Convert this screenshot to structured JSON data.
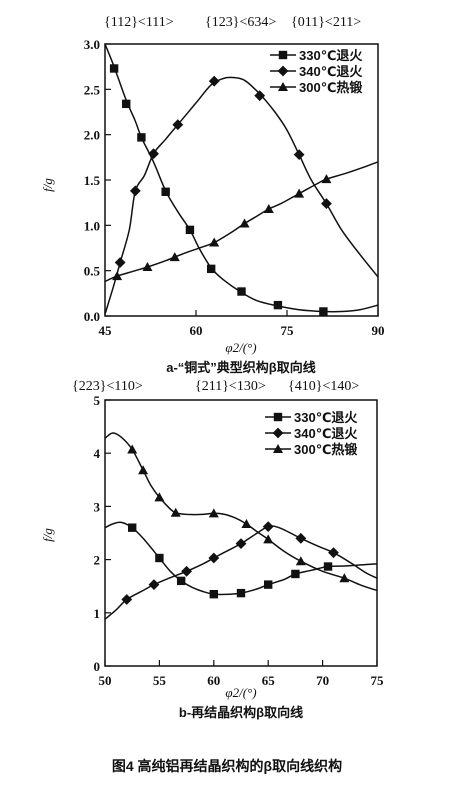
{
  "figure_caption": "图4   高纯铝再结晶织构的β取向线织构",
  "chart_data": [
    {
      "type": "line",
      "subtitle": "a-“铜式”典型织构β取向线",
      "xlabel": "φ2/(°)",
      "ylabel": "f/g",
      "top_annotations": [
        "{112}<111>",
        "{123}<634>",
        "{011}<211>"
      ],
      "xlim": [
        45,
        90
      ],
      "ylim": [
        0,
        3.0
      ],
      "x_ticks": [
        "45",
        "60",
        "75",
        "90"
      ],
      "y_ticks": [
        "0.0",
        "0.5",
        "1.0",
        "1.5",
        "2.0",
        "2.5",
        "3.0"
      ],
      "legend_position": "top-right",
      "series": [
        {
          "name": "330℃退火",
          "marker": "square",
          "points": [
            [
              46.5,
              2.73
            ],
            [
              48.5,
              2.34
            ],
            [
              51,
              1.97
            ],
            [
              55,
              1.37
            ],
            [
              59,
              0.95
            ],
            [
              62.5,
              0.52
            ],
            [
              67.5,
              0.27
            ],
            [
              73.5,
              0.12
            ],
            [
              81,
              0.05
            ]
          ],
          "curve": [
            [
              45,
              3.0
            ],
            [
              46.5,
              2.75
            ],
            [
              48.5,
              2.38
            ],
            [
              50,
              2.15
            ],
            [
              51,
              1.97
            ],
            [
              53,
              1.7
            ],
            [
              55,
              1.38
            ],
            [
              57,
              1.15
            ],
            [
              59,
              0.95
            ],
            [
              60.5,
              0.75
            ],
            [
              62.5,
              0.53
            ],
            [
              64.5,
              0.4
            ],
            [
              67.5,
              0.26
            ],
            [
              70,
              0.17
            ],
            [
              73.5,
              0.11
            ],
            [
              77,
              0.07
            ],
            [
              81,
              0.05
            ],
            [
              84,
              0.05
            ],
            [
              87,
              0.07
            ],
            [
              90,
              0.12
            ]
          ]
        },
        {
          "name": "340℃退火",
          "marker": "diamond",
          "points": [
            [
              47.5,
              0.59
            ],
            [
              50,
              1.38
            ],
            [
              53,
              1.79
            ],
            [
              57,
              2.11
            ],
            [
              63,
              2.59
            ],
            [
              70.5,
              2.43
            ],
            [
              77,
              1.78
            ],
            [
              81.5,
              1.24
            ]
          ],
          "curve": [
            [
              45,
              0.02
            ],
            [
              46.5,
              0.35
            ],
            [
              47.5,
              0.59
            ],
            [
              49,
              0.95
            ],
            [
              50,
              1.38
            ],
            [
              51.5,
              1.55
            ],
            [
              53,
              1.79
            ],
            [
              55,
              1.95
            ],
            [
              57,
              2.11
            ],
            [
              60,
              2.35
            ],
            [
              62.5,
              2.55
            ],
            [
              64.5,
              2.62
            ],
            [
              66,
              2.63
            ],
            [
              68,
              2.6
            ],
            [
              70.5,
              2.45
            ],
            [
              73,
              2.25
            ],
            [
              75,
              2.05
            ],
            [
              77,
              1.78
            ],
            [
              79,
              1.5
            ],
            [
              81.5,
              1.24
            ],
            [
              84,
              0.95
            ],
            [
              87,
              0.68
            ],
            [
              90,
              0.43
            ]
          ]
        },
        {
          "name": "300℃热锻",
          "marker": "triangle",
          "points": [
            [
              47,
              0.44
            ],
            [
              52,
              0.54
            ],
            [
              56.5,
              0.65
            ],
            [
              63,
              0.81
            ],
            [
              68,
              1.02
            ],
            [
              72,
              1.18
            ],
            [
              77,
              1.35
            ],
            [
              81.5,
              1.51
            ]
          ],
          "curve": [
            [
              45,
              0.38
            ],
            [
              47,
              0.44
            ],
            [
              50,
              0.5
            ],
            [
              52,
              0.54
            ],
            [
              55,
              0.61
            ],
            [
              58,
              0.69
            ],
            [
              61,
              0.76
            ],
            [
              63,
              0.81
            ],
            [
              66,
              0.93
            ],
            [
              68,
              1.02
            ],
            [
              70,
              1.1
            ],
            [
              72,
              1.18
            ],
            [
              74,
              1.24
            ],
            [
              77,
              1.35
            ],
            [
              80,
              1.46
            ],
            [
              81.5,
              1.51
            ],
            [
              85,
              1.58
            ],
            [
              88,
              1.65
            ],
            [
              90,
              1.7
            ]
          ]
        }
      ]
    },
    {
      "type": "line",
      "subtitle": "b-再结晶织构β取向线",
      "xlabel": "φ2/(°)",
      "ylabel": "f/g",
      "top_annotations": [
        "{223}<110>",
        "{211}<130>",
        "{410}<140>"
      ],
      "xlim": [
        50,
        75
      ],
      "ylim": [
        0,
        5
      ],
      "x_ticks": [
        "50",
        "55",
        "60",
        "65",
        "70",
        "75"
      ],
      "y_ticks": [
        "0",
        "1",
        "2",
        "3",
        "4",
        "5"
      ],
      "legend_position": "top-right",
      "series": [
        {
          "name": "330℃退火",
          "marker": "square",
          "points": [
            [
              52.5,
              2.6
            ],
            [
              55,
              2.03
            ],
            [
              57,
              1.6
            ],
            [
              60,
              1.35
            ],
            [
              62.5,
              1.37
            ],
            [
              65,
              1.53
            ],
            [
              67.5,
              1.73
            ],
            [
              70.5,
              1.87
            ]
          ],
          "curve": [
            [
              50,
              2.6
            ],
            [
              50.7,
              2.67
            ],
            [
              51.5,
              2.7
            ],
            [
              52.5,
              2.6
            ],
            [
              53.5,
              2.4
            ],
            [
              55,
              2.03
            ],
            [
              56,
              1.78
            ],
            [
              57,
              1.6
            ],
            [
              58,
              1.48
            ],
            [
              59,
              1.4
            ],
            [
              60,
              1.35
            ],
            [
              61.5,
              1.35
            ],
            [
              62.5,
              1.37
            ],
            [
              64,
              1.45
            ],
            [
              65,
              1.53
            ],
            [
              66.5,
              1.63
            ],
            [
              67.5,
              1.73
            ],
            [
              69,
              1.8
            ],
            [
              70.5,
              1.87
            ],
            [
              72,
              1.88
            ],
            [
              73.5,
              1.9
            ],
            [
              75,
              1.92
            ]
          ]
        },
        {
          "name": "340℃退火",
          "marker": "diamond",
          "points": [
            [
              52,
              1.25
            ],
            [
              54.5,
              1.53
            ],
            [
              57.5,
              1.78
            ],
            [
              60,
              2.03
            ],
            [
              62.5,
              2.3
            ],
            [
              65,
              2.62
            ],
            [
              68,
              2.4
            ],
            [
              71,
              2.13
            ]
          ],
          "curve": [
            [
              50,
              0.88
            ],
            [
              51,
              1.05
            ],
            [
              52,
              1.25
            ],
            [
              53.5,
              1.42
            ],
            [
              54.5,
              1.53
            ],
            [
              56,
              1.66
            ],
            [
              57.5,
              1.78
            ],
            [
              59,
              1.92
            ],
            [
              60,
              2.03
            ],
            [
              61,
              2.14
            ],
            [
              62.5,
              2.3
            ],
            [
              64,
              2.5
            ],
            [
              65,
              2.62
            ],
            [
              66,
              2.6
            ],
            [
              68,
              2.4
            ],
            [
              69.5,
              2.26
            ],
            [
              71,
              2.13
            ],
            [
              72.5,
              1.95
            ],
            [
              74,
              1.75
            ],
            [
              75,
              1.65
            ]
          ]
        },
        {
          "name": "300℃热锻",
          "marker": "triangle",
          "points": [
            [
              52.5,
              4.07
            ],
            [
              53.5,
              3.68
            ],
            [
              55,
              3.17
            ],
            [
              56.5,
              2.88
            ],
            [
              60,
              2.87
            ],
            [
              63,
              2.67
            ],
            [
              65,
              2.38
            ],
            [
              68,
              1.97
            ],
            [
              72,
              1.65
            ]
          ],
          "curve": [
            [
              50,
              4.28
            ],
            [
              50.7,
              4.38
            ],
            [
              51.5,
              4.3
            ],
            [
              52.5,
              4.07
            ],
            [
              53.5,
              3.68
            ],
            [
              54.2,
              3.4
            ],
            [
              55,
              3.17
            ],
            [
              56,
              2.95
            ],
            [
              56.5,
              2.88
            ],
            [
              57.5,
              2.85
            ],
            [
              59,
              2.85
            ],
            [
              60,
              2.87
            ],
            [
              61,
              2.85
            ],
            [
              62,
              2.78
            ],
            [
              63,
              2.67
            ],
            [
              64,
              2.52
            ],
            [
              65,
              2.38
            ],
            [
              66.5,
              2.15
            ],
            [
              68,
              1.97
            ],
            [
              70,
              1.78
            ],
            [
              72,
              1.65
            ],
            [
              73.5,
              1.52
            ],
            [
              75,
              1.42
            ]
          ]
        }
      ]
    }
  ]
}
